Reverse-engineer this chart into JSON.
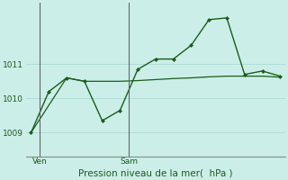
{
  "bg_color": "#cceee8",
  "grid_color": "#b0ddd8",
  "line_color": "#1a5c1a",
  "title": "Pression niveau de la mer(  hPa )",
  "ylabel_ticks": [
    1009,
    1010,
    1011
  ],
  "ylim": [
    1008.3,
    1012.8
  ],
  "xlim": [
    -0.3,
    14.3
  ],
  "ven_x": 0.5,
  "sam_x": 5.5,
  "series1_x": [
    0,
    1,
    2,
    3,
    4,
    5,
    6,
    7,
    8,
    9,
    10,
    11,
    12,
    13,
    14
  ],
  "series1_y": [
    1009.0,
    1010.2,
    1010.6,
    1010.5,
    1009.35,
    1009.65,
    1010.85,
    1011.15,
    1011.15,
    1011.55,
    1012.3,
    1012.35,
    1010.7,
    1010.8,
    1010.65
  ],
  "series2_x": [
    0,
    2,
    3,
    4,
    5,
    6,
    7,
    8,
    9,
    10,
    11,
    12,
    13,
    14
  ],
  "series2_y": [
    1009.0,
    1010.6,
    1010.5,
    1010.5,
    1010.5,
    1010.52,
    1010.55,
    1010.58,
    1010.6,
    1010.63,
    1010.65,
    1010.65,
    1010.65,
    1010.62
  ]
}
